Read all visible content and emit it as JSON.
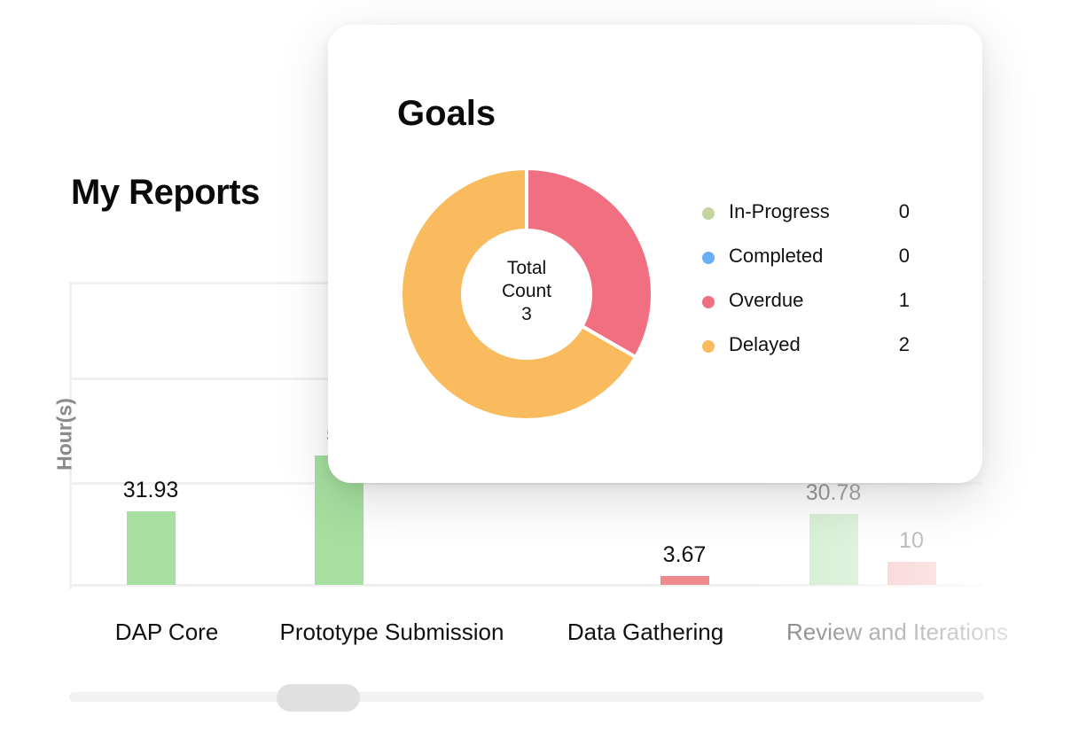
{
  "reports": {
    "title": "My Reports",
    "y_axis_label": "Hour(s)",
    "scroll_position": 0.25
  },
  "chart_data": {
    "type": "bar",
    "ylabel": "Hour(s)",
    "categories": [
      "DAP Core",
      "Prototype Submission",
      "Data Gathering",
      "Review and Iterations"
    ],
    "series": [
      {
        "color": "#a6dfa0",
        "values": [
          31.93,
          56,
          null,
          30.78
        ]
      },
      {
        "color": "#ee8a8e",
        "values": [
          null,
          null,
          3.67,
          10
        ]
      }
    ],
    "data_labels": {
      "green": [
        "31.93",
        "56",
        "",
        "30.78"
      ],
      "red": [
        "",
        "",
        "3.67",
        "10"
      ]
    }
  },
  "goals": {
    "title": "Goals",
    "center": {
      "line1": "Total",
      "line2": "Count",
      "total": "3"
    },
    "legend": [
      {
        "label": "In-Progress",
        "count": "0",
        "color": "#c6d5a0"
      },
      {
        "label": "Completed",
        "count": "0",
        "color": "#6aaef5"
      },
      {
        "label": "Overdue",
        "count": "1",
        "color": "#f07082"
      },
      {
        "label": "Delayed",
        "count": "2",
        "color": "#f9bb5d"
      }
    ],
    "pie": {
      "type": "pie",
      "slices": [
        {
          "label": "Overdue",
          "value": 1,
          "color": "#f07082"
        },
        {
          "label": "Delayed",
          "value": 2,
          "color": "#f9bb5d"
        }
      ]
    }
  }
}
